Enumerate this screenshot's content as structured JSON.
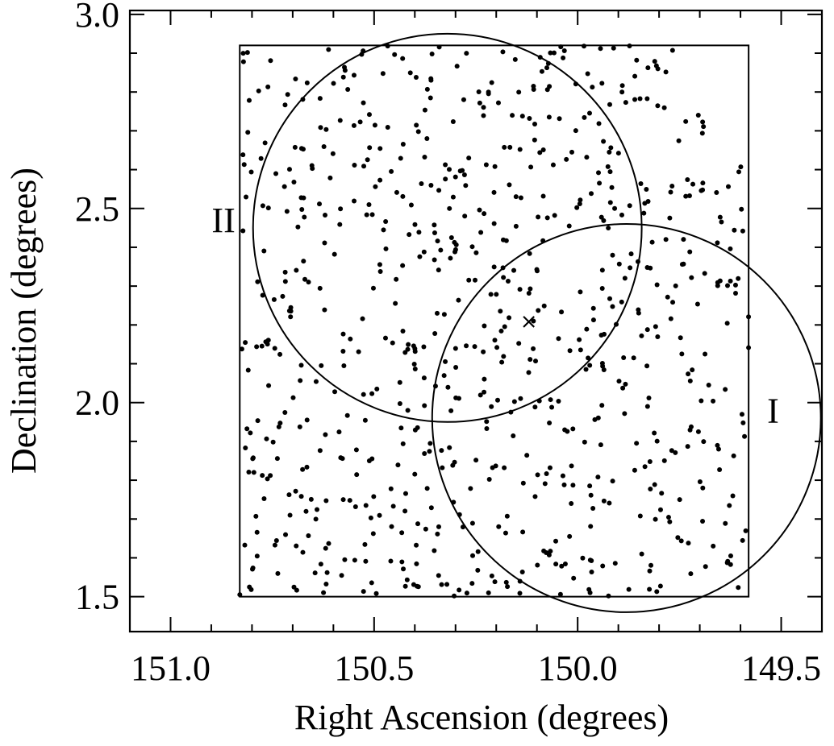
{
  "chart_data": {
    "type": "scatter",
    "title": "",
    "xlabel": "Right Ascension (degrees)",
    "ylabel": "Declination (degrees)",
    "xlim": [
      151.1,
      149.4
    ],
    "ylim": [
      1.41,
      3.01
    ],
    "x_reversed": true,
    "xticks": [
      "151.0",
      "150.5",
      "150.0",
      "149.5"
    ],
    "yticks": [
      "1.5",
      "2.0",
      "2.5",
      "3.0"
    ],
    "grid": false,
    "legend": "none",
    "colors": {
      "points": "#000000",
      "outline": "#000000",
      "background": "#ffffff"
    },
    "rectangle": {
      "x_min": 149.58,
      "x_max": 150.83,
      "y_min": 1.5,
      "y_max": 2.92
    },
    "circles": [
      {
        "label": "I",
        "center_x": 149.88,
        "center_y": 1.96,
        "radius_dec": 0.5,
        "label_x": 149.52,
        "label_y": 1.98
      },
      {
        "label": "II",
        "center_x": 150.32,
        "center_y": 2.45,
        "radius_dec": 0.5,
        "label_x": 150.87,
        "label_y": 2.47
      }
    ],
    "marker": {
      "symbol": "×",
      "x": 150.12,
      "y": 2.21
    },
    "point_count_approx": 750,
    "series": [
      {
        "values": []
      }
    ]
  }
}
